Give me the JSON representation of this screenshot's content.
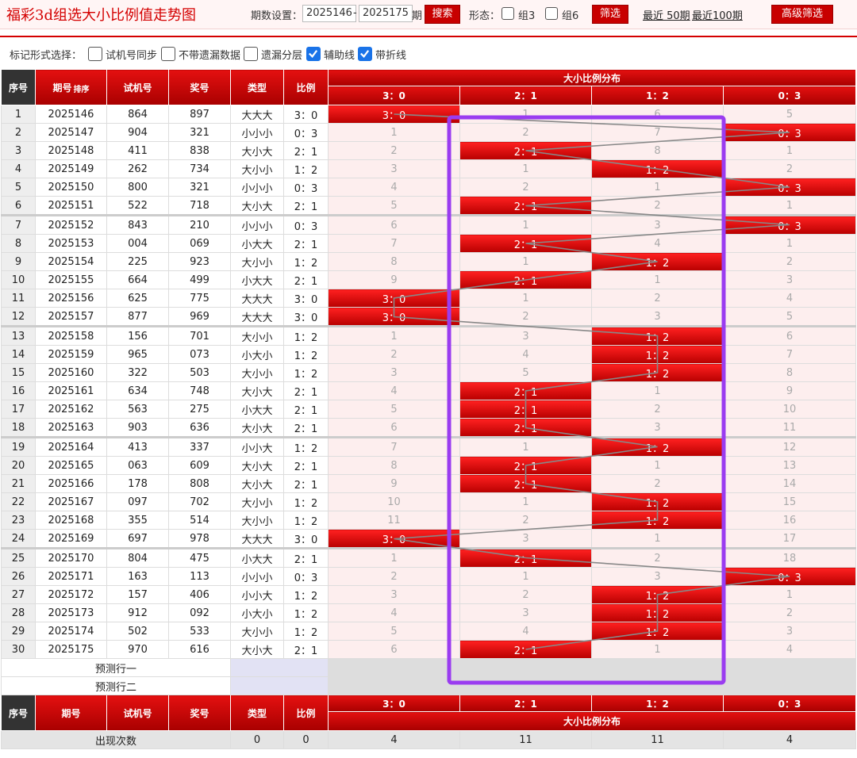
{
  "header": {
    "title": "福彩3d组选大小比例值走势图",
    "period_label": "期数设置：",
    "start": "2025146",
    "dash": "-",
    "end": "2025175",
    "period_unit": "期",
    "search": "搜索",
    "form_label": "形态：",
    "options": [
      "组3",
      "组6"
    ],
    "filter": "筛选",
    "recent": [
      "最近 50期",
      "最近100期"
    ],
    "advanced": "高级筛选"
  },
  "marking": {
    "label": "标记形式选择：",
    "options": [
      {
        "text": "试机号同步",
        "checked": false
      },
      {
        "text": "不带遗漏数据",
        "checked": false
      },
      {
        "text": "遗漏分层",
        "checked": false
      },
      {
        "text": "辅助线",
        "checked": true
      },
      {
        "text": "带折线",
        "checked": true
      }
    ]
  },
  "table": {
    "columns": [
      "序号",
      "期号",
      "试机号",
      "奖号",
      "类型",
      "比例"
    ],
    "sort": "排序",
    "group": "大小比例分布",
    "ratios": [
      "3：0",
      "2：1",
      "1：2",
      "0：3"
    ],
    "rows": [
      [
        "1",
        "2025146",
        "864",
        "897",
        "大大大",
        "3：0",
        "3：0",
        "1",
        "6",
        "5"
      ],
      [
        "2",
        "2025147",
        "904",
        "321",
        "小小小",
        "0：3",
        "1",
        "2",
        "7",
        "0：3"
      ],
      [
        "3",
        "2025148",
        "411",
        "838",
        "大小大",
        "2：1",
        "2",
        "2：1",
        "8",
        "1"
      ],
      [
        "4",
        "2025149",
        "262",
        "734",
        "大小小",
        "1：2",
        "3",
        "1",
        "1：2",
        "2"
      ],
      [
        "5",
        "2025150",
        "800",
        "321",
        "小小小",
        "0：3",
        "4",
        "2",
        "1",
        "0：3"
      ],
      [
        "6",
        "2025151",
        "522",
        "718",
        "大小大",
        "2：1",
        "5",
        "2：1",
        "2",
        "1"
      ],
      [
        "7",
        "2025152",
        "843",
        "210",
        "小小小",
        "0：3",
        "6",
        "1",
        "3",
        "0：3"
      ],
      [
        "8",
        "2025153",
        "004",
        "069",
        "小大大",
        "2：1",
        "7",
        "2：1",
        "4",
        "1"
      ],
      [
        "9",
        "2025154",
        "225",
        "923",
        "大小小",
        "1：2",
        "8",
        "1",
        "1：2",
        "2"
      ],
      [
        "10",
        "2025155",
        "664",
        "499",
        "小大大",
        "2：1",
        "9",
        "2：1",
        "1",
        "3"
      ],
      [
        "11",
        "2025156",
        "625",
        "775",
        "大大大",
        "3：0",
        "3：0",
        "1",
        "2",
        "4"
      ],
      [
        "12",
        "2025157",
        "877",
        "969",
        "大大大",
        "3：0",
        "3：0",
        "2",
        "3",
        "5"
      ],
      [
        "13",
        "2025158",
        "156",
        "701",
        "大小小",
        "1：2",
        "1",
        "3",
        "1：2",
        "6"
      ],
      [
        "14",
        "2025159",
        "965",
        "073",
        "小大小",
        "1：2",
        "2",
        "4",
        "1：2",
        "7"
      ],
      [
        "15",
        "2025160",
        "322",
        "503",
        "大小小",
        "1：2",
        "3",
        "5",
        "1：2",
        "8"
      ],
      [
        "16",
        "2025161",
        "634",
        "748",
        "大小大",
        "2：1",
        "4",
        "2：1",
        "1",
        "9"
      ],
      [
        "17",
        "2025162",
        "563",
        "275",
        "小大大",
        "2：1",
        "5",
        "2：1",
        "2",
        "10"
      ],
      [
        "18",
        "2025163",
        "903",
        "636",
        "大小大",
        "2：1",
        "6",
        "2：1",
        "3",
        "11"
      ],
      [
        "19",
        "2025164",
        "413",
        "337",
        "小小大",
        "1：2",
        "7",
        "1",
        "1：2",
        "12"
      ],
      [
        "20",
        "2025165",
        "063",
        "609",
        "大小大",
        "2：1",
        "8",
        "2：1",
        "1",
        "13"
      ],
      [
        "21",
        "2025166",
        "178",
        "808",
        "大小大",
        "2：1",
        "9",
        "2：1",
        "2",
        "14"
      ],
      [
        "22",
        "2025167",
        "097",
        "702",
        "大小小",
        "1：2",
        "10",
        "1",
        "1：2",
        "15"
      ],
      [
        "23",
        "2025168",
        "355",
        "514",
        "大小小",
        "1：2",
        "11",
        "2",
        "1：2",
        "16"
      ],
      [
        "24",
        "2025169",
        "697",
        "978",
        "大大大",
        "3：0",
        "3：0",
        "3",
        "1",
        "17"
      ],
      [
        "25",
        "2025170",
        "804",
        "475",
        "小大大",
        "2：1",
        "1",
        "2：1",
        "2",
        "18"
      ],
      [
        "26",
        "2025171",
        "163",
        "113",
        "小小小",
        "0：3",
        "2",
        "1",
        "3",
        "0：3"
      ],
      [
        "27",
        "2025172",
        "157",
        "406",
        "小小大",
        "1：2",
        "3",
        "2",
        "1：2",
        "1"
      ],
      [
        "28",
        "2025173",
        "912",
        "092",
        "小大小",
        "1：2",
        "4",
        "3",
        "1：2",
        "2"
      ],
      [
        "29",
        "2025174",
        "502",
        "533",
        "大小小",
        "1：2",
        "5",
        "4",
        "1：2",
        "3"
      ],
      [
        "30",
        "2025175",
        "970",
        "616",
        "大小大",
        "2：1",
        "6",
        "2：1",
        "1",
        "4"
      ]
    ],
    "predict": [
      "预测行一",
      "预测行二"
    ],
    "count_label": "出现次数",
    "counts": [
      "0",
      "0",
      "4",
      "11",
      "11",
      "4"
    ]
  }
}
